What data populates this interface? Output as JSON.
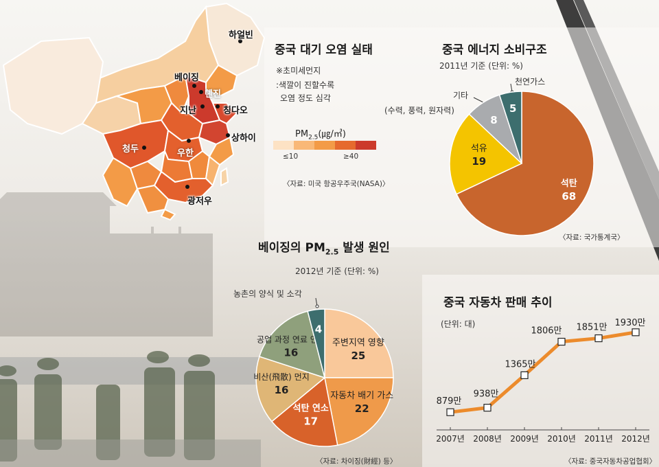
{
  "colors": {
    "coal": "#c8652d",
    "oil": "#f4c400",
    "other": "#a9abae",
    "gas": "#3d6e6e",
    "line": "#ec8b2c",
    "pm_scale": [
      "#fde2c4",
      "#f9b877",
      "#f39b47",
      "#e66a2e",
      "#cc3a2c"
    ]
  },
  "map": {
    "title": "중국 대기 오염 실태",
    "note1": "※초미세먼지",
    "note2": ":색깔이 진할수록",
    "note3": "오염 정도 심각",
    "legend_title_a": "PM",
    "legend_title_sub": "2.5",
    "legend_title_b": "(㎍/㎥)",
    "legend_low": "≤10",
    "legend_high": "≥40",
    "source": "〈자료: 미국 항공우주국(NASA)〉",
    "cities": {
      "harbin": "하얼빈",
      "beijing": "베이징",
      "tianjin": "톈진",
      "jinan": "지난",
      "qingdao": "칭다오",
      "shanghai": "상하이",
      "chengdu": "청두",
      "wuhan": "우한",
      "guangzhou": "광저우"
    }
  },
  "energy": {
    "title": "중국 에너지 소비구조",
    "subtitle": "2011년 기준   (단위: %)",
    "label_other": "기타",
    "label_other_sub": "(수력, 풍력, 원자력)",
    "label_gas": "천연가스",
    "source": "〈자료: 국가통계국〉"
  },
  "beijing_pm": {
    "title_a": "베이징의 PM",
    "title_sub": "2.5",
    "title_b": "발생 원인",
    "subtitle": "2012년 기준   (단위: %)",
    "label_farm": "농촌의 양식 및 소각",
    "source": "〈자료: 차이징(財經) 등〉"
  },
  "cars": {
    "title": "중국 자동차 판매 추이",
    "unit": "(단위: 대)",
    "source": "〈자료: 중국자동차공업협회〉"
  },
  "chart_data": [
    {
      "type": "pie",
      "title": "중국 에너지 소비구조",
      "subtitle": "2011년 기준 (단위: %)",
      "slices": [
        {
          "label": "석탄",
          "value": 68,
          "color": "#c8652d"
        },
        {
          "label": "석유",
          "value": 19,
          "color": "#f4c400"
        },
        {
          "label": "기타 (수력, 풍력, 원자력)",
          "value": 8,
          "color": "#a9abae"
        },
        {
          "label": "천연가스",
          "value": 5,
          "color": "#3d6e6e"
        }
      ]
    },
    {
      "type": "pie",
      "title": "베이징의 PM2.5 발생 원인",
      "subtitle": "2012년 기준 (단위: %)",
      "slices": [
        {
          "label": "주변지역 영향",
          "value": 25,
          "color": "#f9c89a"
        },
        {
          "label": "자동차 배기 가스",
          "value": 22,
          "color": "#ef9a4a"
        },
        {
          "label": "석탄 연소",
          "value": 17,
          "color": "#d8622a"
        },
        {
          "label": "비산(飛散) 먼지",
          "value": 16,
          "color": "#dfb676"
        },
        {
          "label": "공업 과정 연료 연소",
          "value": 16,
          "color": "#8fa07c"
        },
        {
          "label": "농촌의 양식 및 소각",
          "value": 4,
          "color": "#3d6e6e"
        }
      ]
    },
    {
      "type": "line",
      "title": "중국 자동차 판매 추이",
      "ylabel": "(단위: 대)",
      "x": [
        "2007년",
        "2008년",
        "2009년",
        "2010년",
        "2011년",
        "2012년"
      ],
      "series": [
        {
          "values": [
            879,
            938,
            1365,
            1806,
            1851,
            1930
          ],
          "labels": [
            "879만",
            "938만",
            "1365만",
            "1806만",
            "1851만",
            "1930만"
          ]
        }
      ],
      "ylim": [
        700,
        2100
      ]
    }
  ]
}
